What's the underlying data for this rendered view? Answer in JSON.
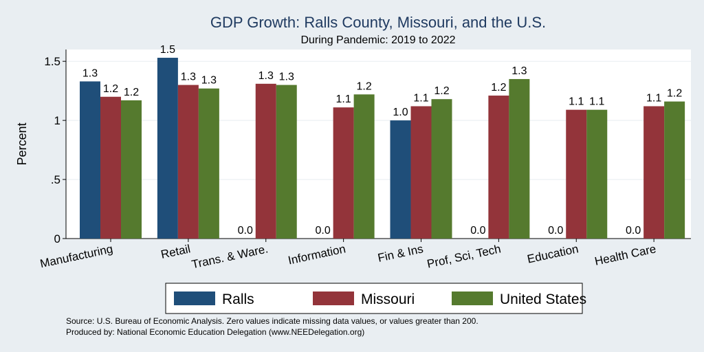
{
  "chart_data": {
    "type": "bar",
    "title": "GDP Growth: Ralls County, Missouri, and the U.S.",
    "subtitle": "During Pandemic: 2019 to 2022",
    "xlabel": "",
    "ylabel": "Percent",
    "ylim": [
      0,
      1.6
    ],
    "yticks": [
      0,
      0.5,
      1,
      1.5
    ],
    "ytick_labels": [
      "0",
      ".5",
      "1",
      "1.5"
    ],
    "grid": true,
    "legend_position": "bottom",
    "categories": [
      "Manufacturing",
      "Retail",
      "Trans. & Ware.",
      "Information",
      "Fin & Ins",
      "Prof, Sci, Tech",
      "Education",
      "Health Care"
    ],
    "series": [
      {
        "name": "Ralls",
        "color": "#1f4e79",
        "values": [
          1.33,
          1.53,
          0,
          0,
          1.0,
          0,
          0,
          0
        ],
        "labels": [
          "1.3",
          "1.5",
          "0.0",
          "0.0",
          "1.0",
          "0.0",
          "0.0",
          "0.0"
        ]
      },
      {
        "name": "Missouri",
        "color": "#93343a",
        "values": [
          1.2,
          1.3,
          1.31,
          1.11,
          1.12,
          1.21,
          1.09,
          1.12
        ],
        "labels": [
          "1.2",
          "1.3",
          "1.3",
          "1.1",
          "1.1",
          "1.2",
          "1.1",
          "1.1"
        ]
      },
      {
        "name": "United States",
        "color": "#557a2e",
        "values": [
          1.17,
          1.27,
          1.3,
          1.22,
          1.18,
          1.35,
          1.09,
          1.16
        ],
        "labels": [
          "1.2",
          "1.3",
          "1.3",
          "1.2",
          "1.2",
          "1.3",
          "1.1",
          "1.2"
        ]
      }
    ],
    "source": "Source: U.S. Bureau of Economic Analysis. Zero values indicate missing data values, or values greater than 200.",
    "produced_by": "Produced by: National Economic Education Delegation (www.NEEDelegation.org)"
  }
}
